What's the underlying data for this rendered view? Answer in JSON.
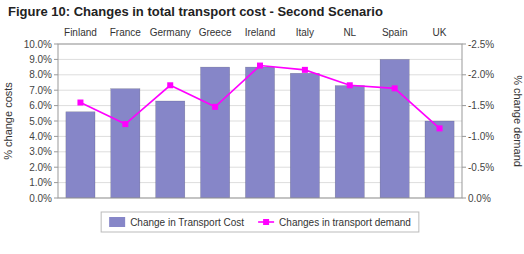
{
  "chart_data": {
    "type": "bar",
    "title": "Figure 10: Changes in total transport cost - Second Scenario",
    "categories": [
      "Finland",
      "France",
      "Germany",
      "Greece",
      "Ireland",
      "Italy",
      "NL",
      "Spain",
      "UK"
    ],
    "series": [
      {
        "name": "Change in Transport Cost",
        "type": "bar",
        "color": "#8686c8",
        "values": [
          5.6,
          7.1,
          6.3,
          8.5,
          8.5,
          8.1,
          7.3,
          9.0,
          5.0
        ]
      },
      {
        "name": "Changes in transport demand",
        "type": "line",
        "axis": "y2",
        "color": "#ff00ff",
        "marker": "square",
        "values": [
          -1.55,
          -1.2,
          -1.83,
          -1.48,
          -2.15,
          -2.08,
          -1.83,
          -1.78,
          -1.13
        ]
      }
    ],
    "ylabel": "% change costs",
    "y2label": "% change demand",
    "ylim": [
      0.0,
      10.0
    ],
    "yticks": [
      {
        "value": 0.0,
        "label": "0.0%"
      },
      {
        "value": 1.0,
        "label": "1.0%"
      },
      {
        "value": 2.0,
        "label": "2.0%"
      },
      {
        "value": 3.0,
        "label": "3.0%"
      },
      {
        "value": 4.0,
        "label": "4.0%"
      },
      {
        "value": 5.0,
        "label": "5.0%"
      },
      {
        "value": 6.0,
        "label": "6.0%"
      },
      {
        "value": 7.0,
        "label": "7.0%"
      },
      {
        "value": 8.0,
        "label": "8.0%"
      },
      {
        "value": 9.0,
        "label": "9.0%"
      },
      {
        "value": 10.0,
        "label": "10.0%"
      }
    ],
    "y2lim": [
      0.0,
      -2.5
    ],
    "y2ticks": [
      {
        "value": -2.5,
        "label": "-2.5%"
      },
      {
        "value": -2.0,
        "label": "-2.0%"
      },
      {
        "value": -1.5,
        "label": "-1.5%"
      },
      {
        "value": -1.0,
        "label": "-1.0%"
      },
      {
        "value": -0.5,
        "label": "-0.5%"
      },
      {
        "value": 0.0,
        "label": "0.0%"
      }
    ],
    "grid": true,
    "legend": "bottom"
  }
}
